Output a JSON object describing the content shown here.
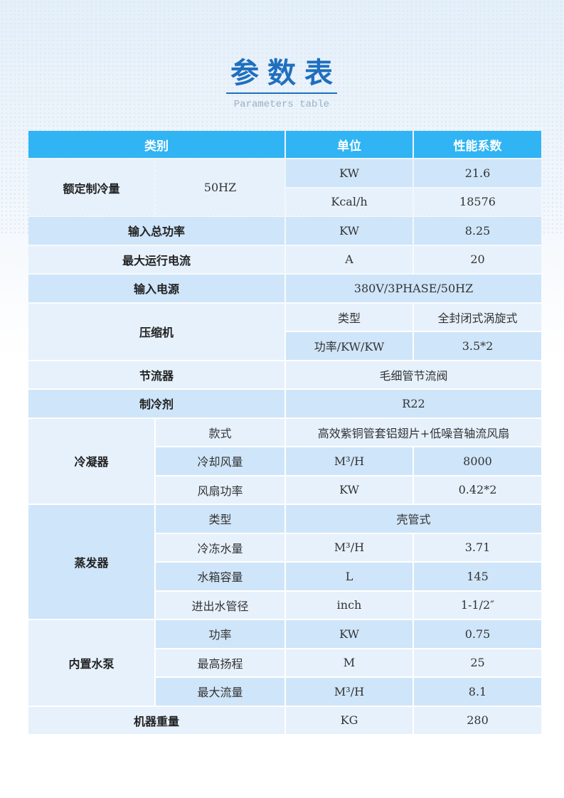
{
  "header": {
    "title": "参数表",
    "subtitle": "Parameters table"
  },
  "colors": {
    "header_bg": "#30b4f4",
    "row_dark": "#cfe5f9",
    "row_light": "#e6f1fc",
    "title": "#1f6fbf"
  },
  "table": {
    "columns": [
      {
        "label": "类别",
        "colspan": 2
      },
      {
        "label": "单位"
      },
      {
        "label": "性能系数"
      }
    ],
    "rows": [
      [
        {
          "t": "额定制冷量",
          "rs": 2,
          "b": 1,
          "s": "l"
        },
        {
          "t": "50HZ",
          "rs": 2,
          "s": "l"
        },
        {
          "t": "KW",
          "s": "d"
        },
        {
          "t": "21.6",
          "s": "d"
        }
      ],
      [
        {
          "t": "Kcal/h",
          "s": "l"
        },
        {
          "t": "18576",
          "s": "l"
        }
      ],
      [
        {
          "t": "输入总功率",
          "cs": 2,
          "b": 1,
          "s": "d"
        },
        {
          "t": "KW",
          "s": "d"
        },
        {
          "t": "8.25",
          "s": "d"
        }
      ],
      [
        {
          "t": "最大运行电流",
          "cs": 2,
          "b": 1,
          "s": "l"
        },
        {
          "t": "A",
          "s": "l"
        },
        {
          "t": "20",
          "s": "l"
        }
      ],
      [
        {
          "t": "输入电源",
          "cs": 2,
          "b": 1,
          "s": "d"
        },
        {
          "t": "380V/3PHASE/50HZ",
          "cs": 2,
          "s": "d"
        }
      ],
      [
        {
          "t": "压缩机",
          "cs": 2,
          "rs": 2,
          "b": 1,
          "s": "l"
        },
        {
          "t": "类型",
          "s": "l"
        },
        {
          "t": "全封闭式涡旋式",
          "s": "l"
        }
      ],
      [
        {
          "t": "功率/KW/KW",
          "s": "d"
        },
        {
          "t": "3.5*2",
          "s": "d"
        }
      ],
      [
        {
          "t": "节流器",
          "cs": 2,
          "b": 1,
          "s": "l"
        },
        {
          "t": "毛细管节流阀",
          "cs": 2,
          "s": "l"
        }
      ],
      [
        {
          "t": "制冷剂",
          "cs": 2,
          "b": 1,
          "s": "d"
        },
        {
          "t": "R22",
          "cs": 2,
          "s": "d"
        }
      ],
      [
        {
          "t": "冷凝器",
          "rs": 3,
          "b": 1,
          "s": "l"
        },
        {
          "t": "款式",
          "s": "l"
        },
        {
          "t": "高效紫铜管套铝翅片+低噪音轴流风扇",
          "cs": 2,
          "s": "l"
        }
      ],
      [
        {
          "t": "冷却风量",
          "s": "d"
        },
        {
          "t": "M³/H",
          "s": "d"
        },
        {
          "t": "8000",
          "s": "d"
        }
      ],
      [
        {
          "t": "风扇功率",
          "s": "l"
        },
        {
          "t": "KW",
          "s": "l"
        },
        {
          "t": "0.42*2",
          "s": "l"
        }
      ],
      [
        {
          "t": "蒸发器",
          "rs": 4,
          "b": 1,
          "s": "d"
        },
        {
          "t": "类型",
          "s": "d"
        },
        {
          "t": "壳管式",
          "cs": 2,
          "s": "d"
        }
      ],
      [
        {
          "t": "冷冻水量",
          "s": "l"
        },
        {
          "t": "M³/H",
          "s": "l"
        },
        {
          "t": "3.71",
          "s": "l"
        }
      ],
      [
        {
          "t": "水箱容量",
          "s": "d"
        },
        {
          "t": "L",
          "s": "d"
        },
        {
          "t": "145",
          "s": "d"
        }
      ],
      [
        {
          "t": "进出水管径",
          "s": "l"
        },
        {
          "t": "inch",
          "s": "l"
        },
        {
          "t": "1-1/2″",
          "s": "l"
        }
      ],
      [
        {
          "t": "内置水泵",
          "rs": 3,
          "b": 1,
          "s": "l"
        },
        {
          "t": "功率",
          "s": "d"
        },
        {
          "t": "KW",
          "s": "d"
        },
        {
          "t": "0.75",
          "s": "d"
        }
      ],
      [
        {
          "t": "最高扬程",
          "s": "l"
        },
        {
          "t": "M",
          "s": "l"
        },
        {
          "t": "25",
          "s": "l"
        }
      ],
      [
        {
          "t": "最大流量",
          "s": "d"
        },
        {
          "t": "M³/H",
          "s": "d"
        },
        {
          "t": "8.1",
          "s": "d"
        }
      ],
      [
        {
          "t": "机器重量",
          "cs": 2,
          "b": 1,
          "s": "l"
        },
        {
          "t": "KG",
          "s": "l"
        },
        {
          "t": "280",
          "s": "l"
        }
      ]
    ]
  }
}
